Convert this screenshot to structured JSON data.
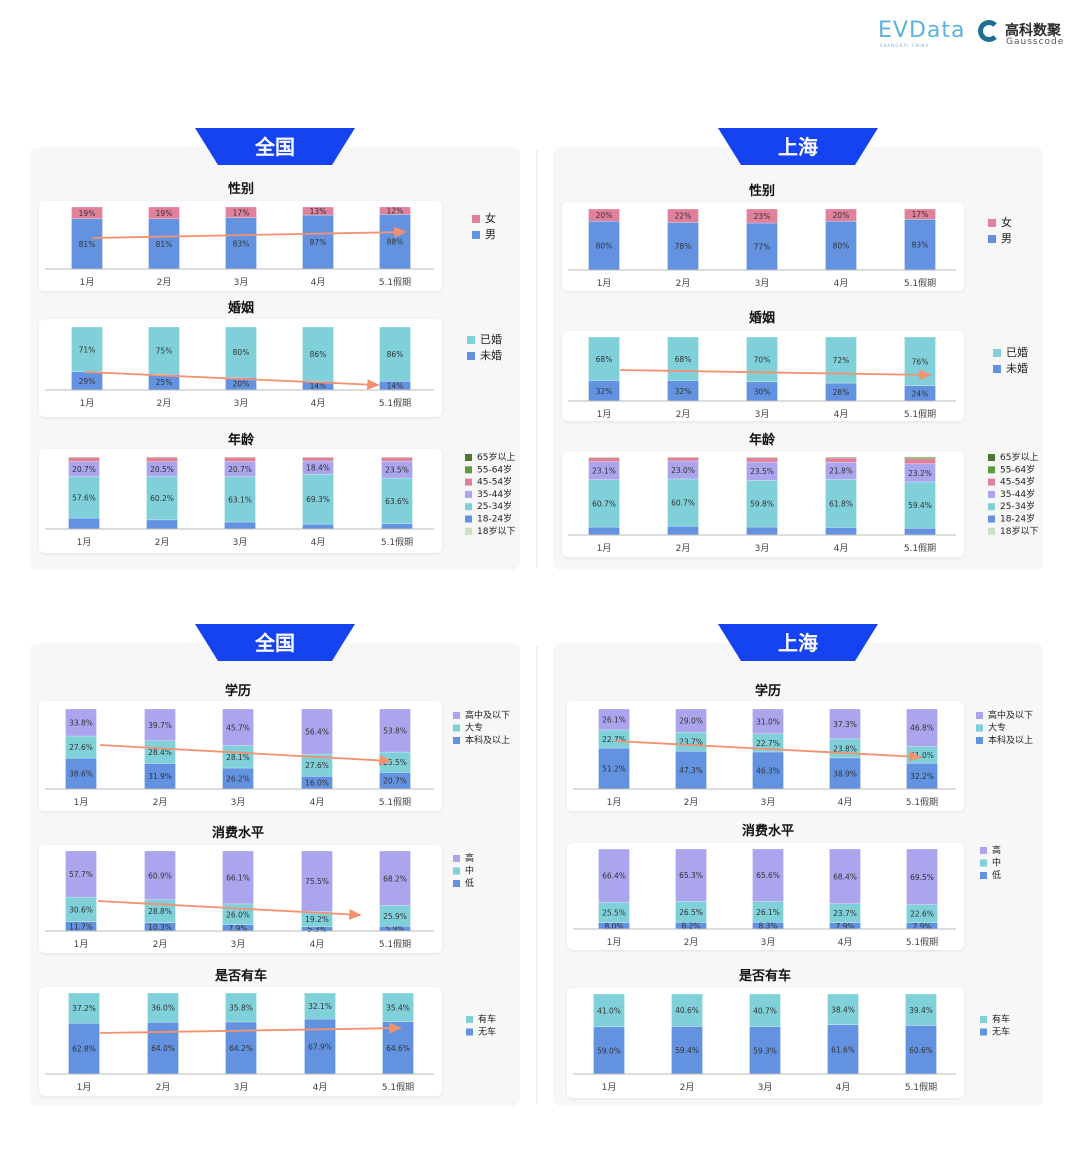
{
  "logos": {
    "evdata": "EVData",
    "evdata_sub": "SHANGHAI CHINA",
    "gauss_cn": "高科数聚",
    "gauss_en": "Gausscode"
  },
  "panels": [
    {
      "banner": "全国"
    },
    {
      "banner": "上海"
    },
    {
      "banner": "全国"
    },
    {
      "banner": "上海"
    }
  ],
  "colors": {
    "banner": "#1543ef",
    "panel_bg": "#f7f7f7",
    "trend_arrow": "#f4916f"
  },
  "chart_data": [
    {
      "region": "全国",
      "type": "bar",
      "stacked": true,
      "title": "性别",
      "categories": [
        "1月",
        "2月",
        "3月",
        "4月",
        "5.1假期"
      ],
      "ylim": [
        0,
        100
      ],
      "legend": "right",
      "label_decimals": 0,
      "trend_arrow": true,
      "series": [
        {
          "name": "男",
          "color": "#6393e0",
          "labeled": true,
          "values": [
            81,
            81,
            83,
            87,
            88
          ]
        },
        {
          "name": "女",
          "color": "#e0809a",
          "labeled": true,
          "values": [
            19,
            19,
            17,
            13,
            12
          ]
        }
      ]
    },
    {
      "region": "全国",
      "type": "bar",
      "stacked": true,
      "title": "婚姻",
      "categories": [
        "1月",
        "2月",
        "3月",
        "4月",
        "5.1假期"
      ],
      "ylim": [
        0,
        100
      ],
      "legend": "right",
      "label_decimals": 0,
      "trend_arrow": true,
      "series": [
        {
          "name": "未婚",
          "color": "#6393e0",
          "labeled": true,
          "values": [
            29,
            25,
            20,
            14,
            14
          ]
        },
        {
          "name": "已婚",
          "color": "#80d0d9",
          "labeled": true,
          "values": [
            71,
            75,
            80,
            86,
            86
          ]
        }
      ]
    },
    {
      "region": "全国",
      "type": "bar",
      "stacked": true,
      "title": "年龄",
      "categories": [
        "1月",
        "2月",
        "3月",
        "4月",
        "5.1假期"
      ],
      "ylim": [
        0,
        100
      ],
      "legend": "right",
      "label_decimals": 1,
      "trend_arrow": false,
      "series": [
        {
          "name": "18岁以下",
          "color": "#c8e3c2",
          "labeled": false,
          "values": [
            0.2,
            0.2,
            0.2,
            0.2,
            0.2
          ]
        },
        {
          "name": "18-24岁",
          "color": "#6393e0",
          "labeled": false,
          "values": [
            15,
            12.5,
            9.5,
            6.5,
            7
          ]
        },
        {
          "name": "25-34岁",
          "color": "#80d0d9",
          "labeled": true,
          "values": [
            57.6,
            60.2,
            63.1,
            69.3,
            63.6
          ]
        },
        {
          "name": "35-44岁",
          "color": "#aaa5ec",
          "labeled": true,
          "values": [
            20.7,
            20.5,
            20.7,
            18.4,
            23.5
          ]
        },
        {
          "name": "45-54岁",
          "color": "#e0809a",
          "labeled": false,
          "values": [
            6,
            6.2,
            6,
            5,
            5.2
          ]
        },
        {
          "name": "55-64岁",
          "color": "#5e9a3b",
          "labeled": false,
          "values": [
            0.4,
            0.4,
            0.4,
            0.5,
            0.4
          ]
        },
        {
          "name": "65岁以上",
          "color": "#4b772e",
          "labeled": false,
          "values": [
            0.1,
            0.1,
            0.1,
            0.1,
            0.1
          ]
        }
      ]
    },
    {
      "region": "上海",
      "type": "bar",
      "stacked": true,
      "title": "性别",
      "categories": [
        "1月",
        "2月",
        "3月",
        "4月",
        "5.1假期"
      ],
      "ylim": [
        0,
        100
      ],
      "legend": "right",
      "label_decimals": 0,
      "trend_arrow": false,
      "series": [
        {
          "name": "男",
          "color": "#6393e0",
          "labeled": true,
          "values": [
            80,
            78,
            77,
            80,
            83
          ]
        },
        {
          "name": "女",
          "color": "#e0809a",
          "labeled": true,
          "values": [
            20,
            22,
            23,
            20,
            17
          ]
        }
      ]
    },
    {
      "region": "上海",
      "type": "bar",
      "stacked": true,
      "title": "婚姻",
      "categories": [
        "1月",
        "2月",
        "3月",
        "4月",
        "5.1假期"
      ],
      "ylim": [
        0,
        100
      ],
      "legend": "right",
      "label_decimals": 0,
      "trend_arrow": true,
      "series": [
        {
          "name": "未婚",
          "color": "#6393e0",
          "labeled": true,
          "values": [
            32,
            32,
            30,
            28,
            24
          ]
        },
        {
          "name": "已婚",
          "color": "#80d0d9",
          "labeled": true,
          "values": [
            68,
            68,
            70,
            72,
            76
          ]
        }
      ]
    },
    {
      "region": "上海",
      "type": "bar",
      "stacked": true,
      "title": "年龄",
      "categories": [
        "1月",
        "2月",
        "3月",
        "4月",
        "5.1假期"
      ],
      "ylim": [
        0,
        100
      ],
      "legend": "right",
      "label_decimals": 1,
      "trend_arrow": false,
      "series": [
        {
          "name": "18岁以下",
          "color": "#c8e3c2",
          "labeled": false,
          "values": [
            0.2,
            0.2,
            0.2,
            0.2,
            0.2
          ]
        },
        {
          "name": "18-24岁",
          "color": "#6393e0",
          "labeled": false,
          "values": [
            10,
            11,
            10,
            9.5,
            8.5
          ]
        },
        {
          "name": "25-34岁",
          "color": "#80d0d9",
          "labeled": true,
          "values": [
            60.7,
            60.7,
            59.8,
            61.8,
            59.4
          ]
        },
        {
          "name": "35-44岁",
          "color": "#aaa5ec",
          "labeled": true,
          "values": [
            23.1,
            23.0,
            23.5,
            21.8,
            23.2
          ]
        },
        {
          "name": "45-54岁",
          "color": "#e0809a",
          "labeled": false,
          "values": [
            5,
            4.5,
            5.5,
            5.5,
            6.5
          ]
        },
        {
          "name": "55-64岁",
          "color": "#5e9a3b",
          "labeled": false,
          "values": [
            0.8,
            0.5,
            0.8,
            1,
            1.8
          ]
        },
        {
          "name": "65岁以上",
          "color": "#4b772e",
          "labeled": false,
          "values": [
            0.2,
            0.1,
            0.2,
            0.2,
            0.4
          ]
        }
      ]
    },
    {
      "region": "全国",
      "type": "bar",
      "stacked": true,
      "title": "学历",
      "categories": [
        "1月",
        "2月",
        "3月",
        "4月",
        "5.1假期"
      ],
      "ylim": [
        0,
        100
      ],
      "legend": "right",
      "label_decimals": 1,
      "trend_arrow": true,
      "series": [
        {
          "name": "本科及以上",
          "color": "#6393e0",
          "labeled": true,
          "values": [
            38.6,
            31.9,
            26.2,
            16.0,
            20.7
          ]
        },
        {
          "name": "大专",
          "color": "#80d0d9",
          "labeled": true,
          "values": [
            27.6,
            28.4,
            28.1,
            27.6,
            25.5
          ]
        },
        {
          "name": "高中及以下",
          "color": "#aaa5ec",
          "labeled": true,
          "values": [
            33.8,
            39.7,
            45.7,
            56.4,
            53.8
          ]
        }
      ]
    },
    {
      "region": "全国",
      "type": "bar",
      "stacked": true,
      "title": "消费水平",
      "categories": [
        "1月",
        "2月",
        "3月",
        "4月",
        "5.1假期"
      ],
      "ylim": [
        0,
        100
      ],
      "legend": "right",
      "label_decimals": 1,
      "trend_arrow": true,
      "series": [
        {
          "name": "低",
          "color": "#6393e0",
          "labeled": true,
          "values": [
            11.7,
            10.3,
            7.9,
            5.3,
            5.9
          ]
        },
        {
          "name": "中",
          "color": "#80d0d9",
          "labeled": true,
          "values": [
            30.6,
            28.8,
            26.0,
            19.2,
            25.9
          ]
        },
        {
          "name": "高",
          "color": "#aaa5ec",
          "labeled": true,
          "values": [
            57.7,
            60.9,
            66.1,
            75.5,
            68.2
          ]
        }
      ]
    },
    {
      "region": "全国",
      "type": "bar",
      "stacked": true,
      "title": "是否有车",
      "categories": [
        "1月",
        "2月",
        "3月",
        "4月",
        "5.1假期"
      ],
      "ylim": [
        0,
        100
      ],
      "legend": "right",
      "label_decimals": 1,
      "trend_arrow": true,
      "series": [
        {
          "name": "无车",
          "color": "#6393e0",
          "labeled": true,
          "values": [
            62.8,
            64.0,
            64.2,
            67.9,
            64.6
          ]
        },
        {
          "name": "有车",
          "color": "#80d0d9",
          "labeled": true,
          "values": [
            37.2,
            36.0,
            35.8,
            32.1,
            35.4
          ]
        }
      ]
    },
    {
      "region": "上海",
      "type": "bar",
      "stacked": true,
      "title": "学历",
      "categories": [
        "1月",
        "2月",
        "3月",
        "4月",
        "5.1假期"
      ],
      "ylim": [
        0,
        100
      ],
      "legend": "right",
      "label_decimals": 1,
      "trend_arrow": true,
      "series": [
        {
          "name": "本科及以上",
          "color": "#6393e0",
          "labeled": true,
          "values": [
            51.2,
            47.3,
            46.3,
            38.9,
            32.2
          ]
        },
        {
          "name": "大专",
          "color": "#80d0d9",
          "labeled": true,
          "values": [
            22.7,
            23.7,
            22.7,
            23.8,
            21.0
          ]
        },
        {
          "name": "高中及以下",
          "color": "#aaa5ec",
          "labeled": true,
          "values": [
            26.1,
            29.0,
            31.0,
            37.3,
            46.8
          ]
        }
      ]
    },
    {
      "region": "上海",
      "type": "bar",
      "stacked": true,
      "title": "消费水平",
      "categories": [
        "1月",
        "2月",
        "3月",
        "4月",
        "5.1假期"
      ],
      "ylim": [
        0,
        100
      ],
      "legend": "right",
      "label_decimals": 1,
      "trend_arrow": false,
      "series": [
        {
          "name": "低",
          "color": "#6393e0",
          "labeled": true,
          "values": [
            8.0,
            8.2,
            8.3,
            7.9,
            7.9
          ]
        },
        {
          "name": "中",
          "color": "#80d0d9",
          "labeled": true,
          "values": [
            25.5,
            26.5,
            26.1,
            23.7,
            22.6
          ]
        },
        {
          "name": "高",
          "color": "#aaa5ec",
          "labeled": true,
          "values": [
            66.4,
            65.3,
            65.6,
            68.4,
            69.5
          ]
        }
      ]
    },
    {
      "region": "上海",
      "type": "bar",
      "stacked": true,
      "title": "是否有车",
      "categories": [
        "1月",
        "2月",
        "3月",
        "4月",
        "5.1假期"
      ],
      "ylim": [
        0,
        100
      ],
      "legend": "right",
      "label_decimals": 1,
      "trend_arrow": false,
      "series": [
        {
          "name": "无车",
          "color": "#6393e0",
          "labeled": true,
          "values": [
            59.0,
            59.4,
            59.3,
            61.6,
            60.6
          ]
        },
        {
          "name": "有车",
          "color": "#80d0d9",
          "labeled": true,
          "values": [
            41.0,
            40.6,
            40.7,
            38.4,
            39.4
          ]
        }
      ]
    }
  ]
}
